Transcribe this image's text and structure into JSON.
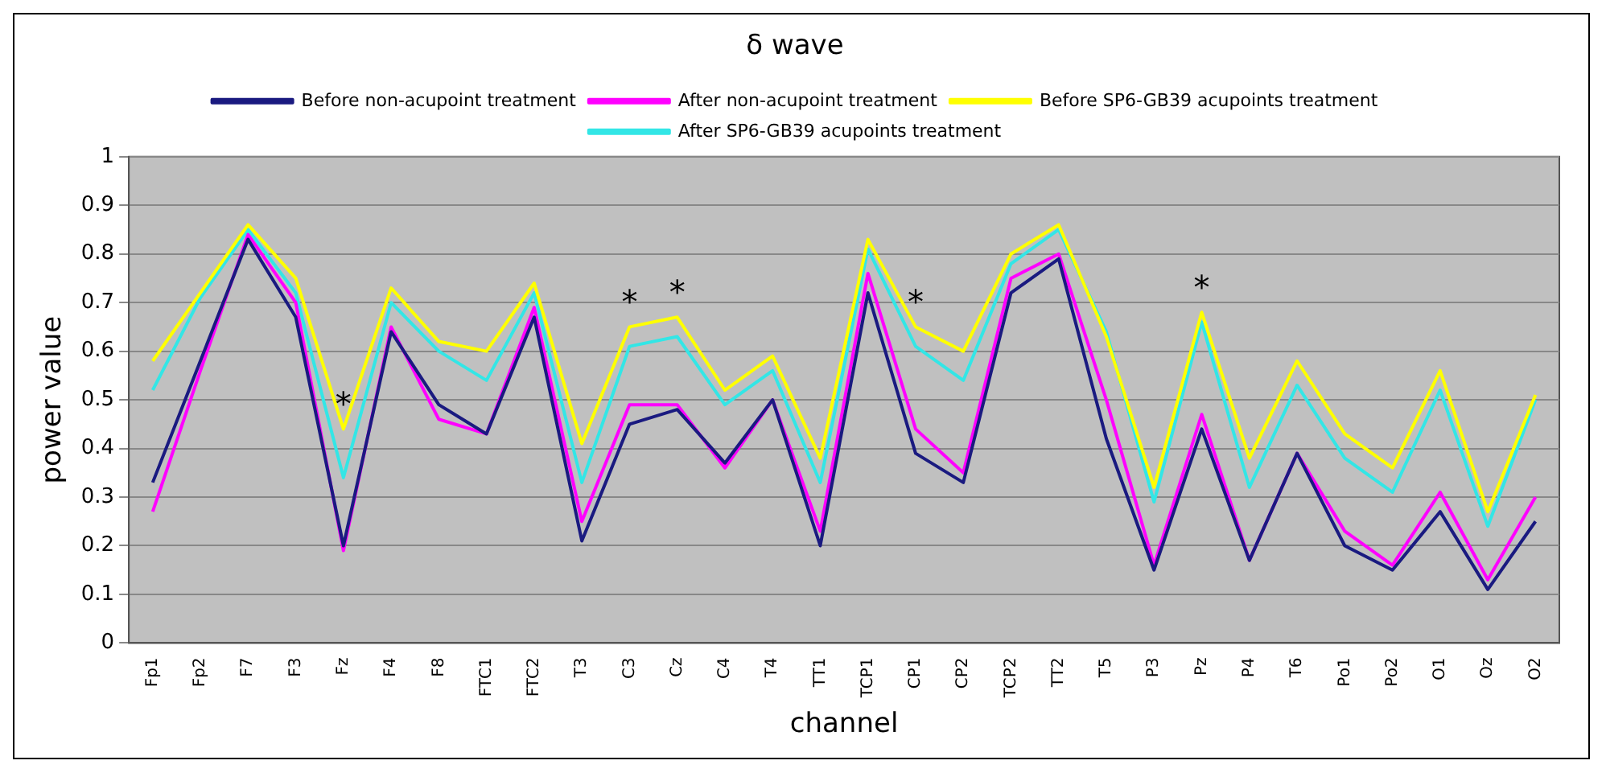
{
  "chart_data": {
    "type": "line",
    "title": "δ wave",
    "xlabel": "channel",
    "ylabel": "power value",
    "categories": [
      "Fp1",
      "Fp2",
      "F7",
      "F3",
      "Fz",
      "F4",
      "F8",
      "FTC1",
      "FTC2",
      "T3",
      "C3",
      "Cz",
      "C4",
      "T4",
      "TT1",
      "TCP1",
      "CP1",
      "CP2",
      "TCP2",
      "TT2",
      "T5",
      "P3",
      "Pz",
      "P4",
      "T6",
      "Po1",
      "Po2",
      "O1",
      "Oz",
      "O2"
    ],
    "series": [
      {
        "name": "Before non-acupoint treatment",
        "color": "#1a1a80",
        "values": [
          0.33,
          0.58,
          0.83,
          0.67,
          0.2,
          0.64,
          0.49,
          0.43,
          0.67,
          0.21,
          0.45,
          0.48,
          0.37,
          0.5,
          0.2,
          0.72,
          0.39,
          0.33,
          0.72,
          0.79,
          0.42,
          0.15,
          0.44,
          0.17,
          0.39,
          0.2,
          0.15,
          0.27,
          0.11,
          0.25
        ]
      },
      {
        "name": "After non-acupoint treatment",
        "color": "#ff00ff",
        "values": [
          0.27,
          0.56,
          0.84,
          0.7,
          0.19,
          0.65,
          0.46,
          0.43,
          0.69,
          0.25,
          0.49,
          0.49,
          0.36,
          0.5,
          0.23,
          0.76,
          0.44,
          0.35,
          0.75,
          0.8,
          0.5,
          0.16,
          0.47,
          0.17,
          0.39,
          0.23,
          0.16,
          0.31,
          0.13,
          0.3
        ]
      },
      {
        "name": "Before SP6-GB39 acupoints treatment",
        "color": "#ffff00",
        "values": [
          0.58,
          0.72,
          0.86,
          0.75,
          0.44,
          0.73,
          0.62,
          0.6,
          0.74,
          0.41,
          0.65,
          0.67,
          0.52,
          0.59,
          0.38,
          0.83,
          0.65,
          0.6,
          0.8,
          0.86,
          0.63,
          0.32,
          0.68,
          0.38,
          0.58,
          0.43,
          0.36,
          0.56,
          0.27,
          0.51
        ]
      },
      {
        "name": "After SP6-GB39 acupoints treatment",
        "color": "#33e6e6",
        "values": [
          0.52,
          0.71,
          0.85,
          0.72,
          0.34,
          0.7,
          0.6,
          0.54,
          0.72,
          0.33,
          0.61,
          0.63,
          0.49,
          0.56,
          0.33,
          0.81,
          0.61,
          0.54,
          0.78,
          0.85,
          0.64,
          0.29,
          0.66,
          0.32,
          0.53,
          0.38,
          0.31,
          0.52,
          0.24,
          0.5
        ]
      }
    ],
    "ylim": [
      0,
      1
    ],
    "yticks": [
      0,
      0.1,
      0.2,
      0.3,
      0.4,
      0.5,
      0.6,
      0.7,
      0.8,
      0.9,
      1
    ],
    "grid": "y",
    "legend": "top",
    "marker": "none",
    "line_style": "solid",
    "annotations": [
      {
        "text": "*",
        "x": "Fz",
        "y": 0.44
      },
      {
        "text": "*",
        "x": "C3",
        "y": 0.65
      },
      {
        "text": "*",
        "x": "Cz",
        "y": 0.67
      },
      {
        "text": "*",
        "x": "CP1",
        "y": 0.65
      },
      {
        "text": "*",
        "x": "Pz",
        "y": 0.68
      }
    ]
  }
}
